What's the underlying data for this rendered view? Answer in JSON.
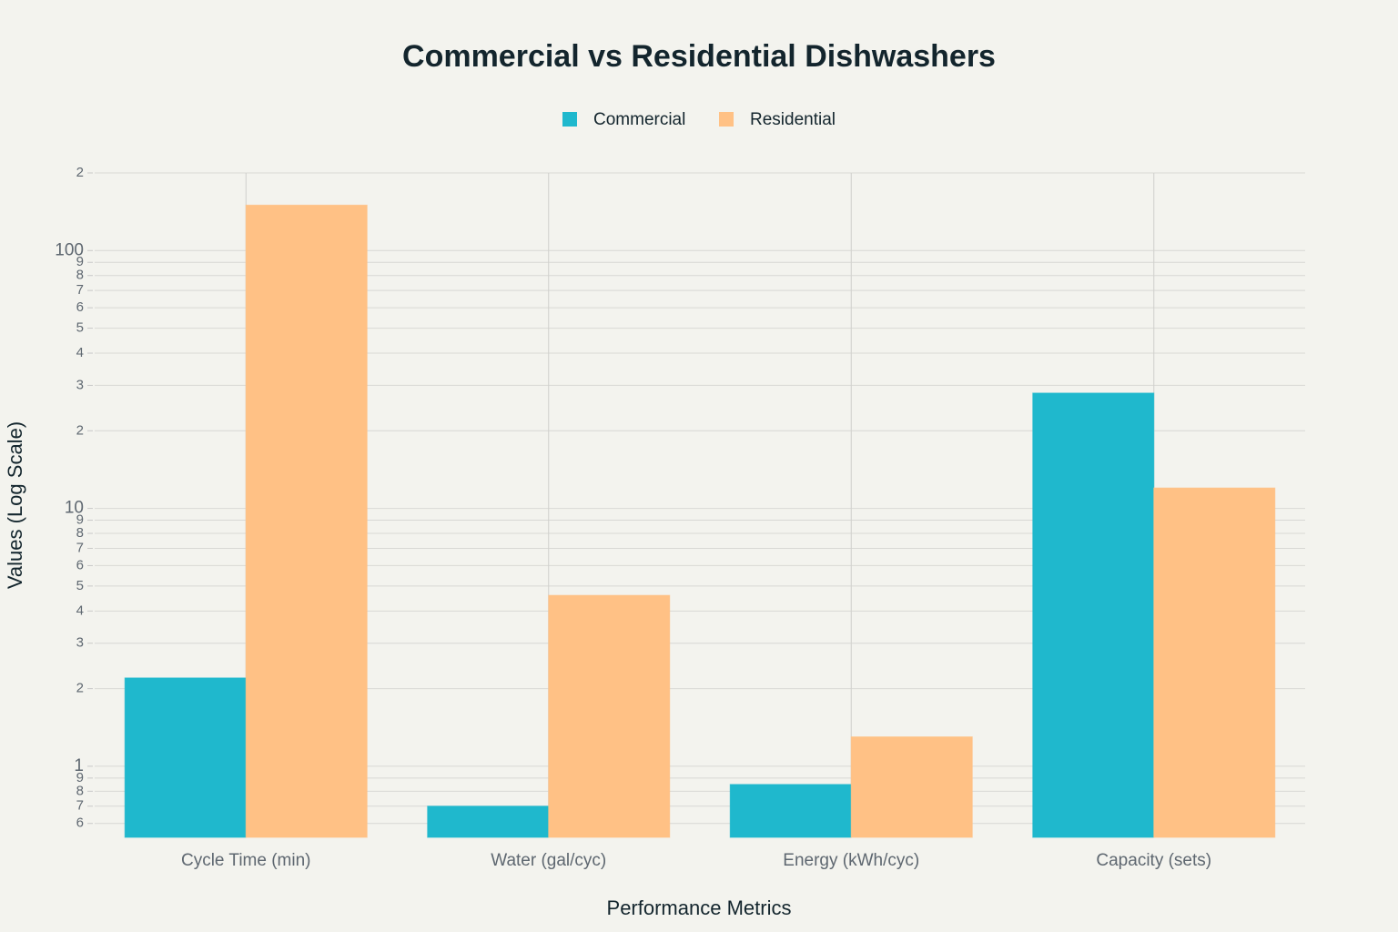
{
  "chart_data": {
    "type": "bar",
    "title": "Commercial vs Residential Dishwashers",
    "x_label": "Performance Metrics",
    "y_label": "Values (Log Scale)",
    "categories": [
      "Cycle Time (min)",
      "Water (gal/cyc)",
      "Energy (kWh/cyc)",
      "Capacity (sets)"
    ],
    "series": [
      {
        "name": "Commercial",
        "color": "#1fb8cd",
        "values": [
          2.2,
          0.7,
          0.85,
          28
        ]
      },
      {
        "name": "Residential",
        "color": "#ffc185",
        "values": [
          150,
          4.6,
          1.3,
          12
        ]
      }
    ],
    "log_scale": true,
    "grid": true,
    "legend": "top",
    "ylim": [
      0.53,
      200
    ],
    "yticks": [
      {
        "value": 0.6,
        "label": "6"
      },
      {
        "value": 0.7,
        "label": "7"
      },
      {
        "value": 0.8,
        "label": "8"
      },
      {
        "value": 0.9,
        "label": "9"
      },
      1,
      {
        "value": 2,
        "label": "2"
      },
      {
        "value": 3,
        "label": "3"
      },
      {
        "value": 4,
        "label": "4"
      },
      {
        "value": 5,
        "label": "5"
      },
      {
        "value": 6,
        "label": "6"
      },
      {
        "value": 7,
        "label": "7"
      },
      {
        "value": 8,
        "label": "8"
      },
      {
        "value": 9,
        "label": "9"
      },
      10,
      {
        "value": 20,
        "label": "2"
      },
      {
        "value": 30,
        "label": "3"
      },
      {
        "value": 40,
        "label": "4"
      },
      {
        "value": 50,
        "label": "5"
      },
      {
        "value": 60,
        "label": "6"
      },
      {
        "value": 70,
        "label": "7"
      },
      {
        "value": 80,
        "label": "8"
      },
      {
        "value": 90,
        "label": "9"
      },
      100,
      {
        "value": 200,
        "label": "2"
      }
    ]
  }
}
